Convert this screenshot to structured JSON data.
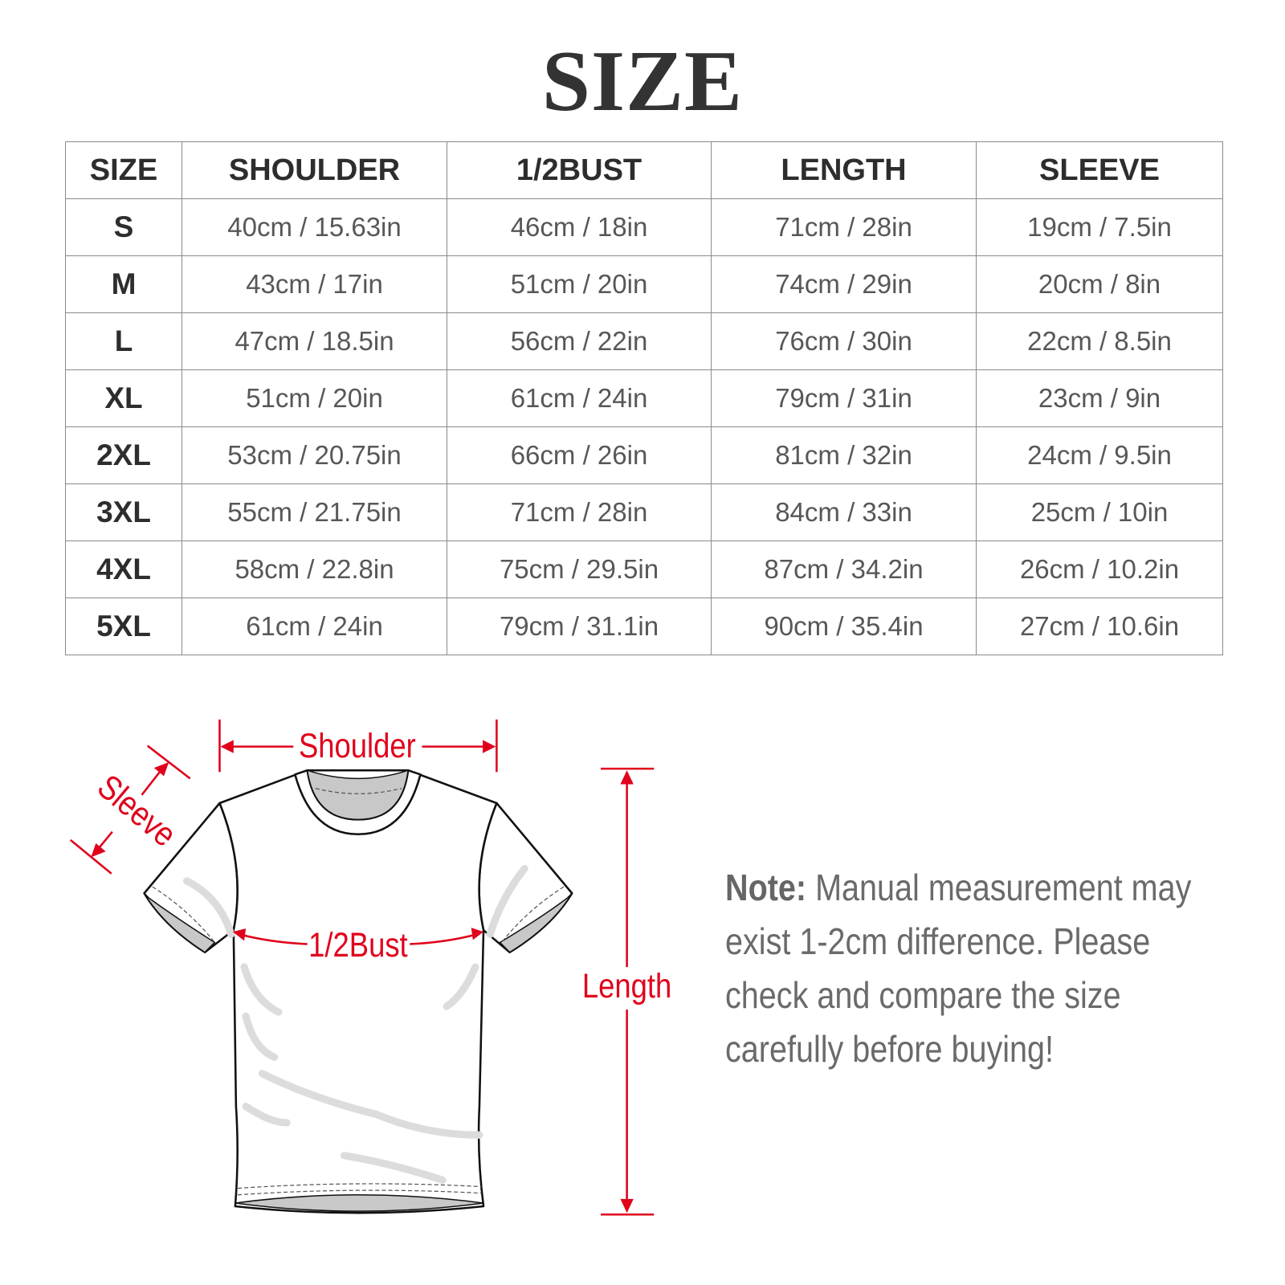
{
  "title": "SIZE",
  "table": {
    "headers": [
      "SIZE",
      "SHOULDER",
      "1/2BUST",
      "LENGTH",
      "SLEEVE"
    ],
    "rows": [
      [
        "S",
        "40cm / 15.63in",
        "46cm / 18in",
        "71cm / 28in",
        "19cm / 7.5in"
      ],
      [
        "M",
        "43cm / 17in",
        "51cm / 20in",
        "74cm / 29in",
        "20cm / 8in"
      ],
      [
        "L",
        "47cm / 18.5in",
        "56cm / 22in",
        "76cm / 30in",
        "22cm / 8.5in"
      ],
      [
        "XL",
        "51cm / 20in",
        "61cm / 24in",
        "79cm / 31in",
        "23cm / 9in"
      ],
      [
        "2XL",
        "53cm / 20.75in",
        "66cm / 26in",
        "81cm / 32in",
        "24cm / 9.5in"
      ],
      [
        "3XL",
        "55cm / 21.75in",
        "71cm / 28in",
        "84cm / 33in",
        "25cm / 10in"
      ],
      [
        "4XL",
        "58cm / 22.8in",
        "75cm / 29.5in",
        "87cm / 34.2in",
        "26cm / 10.2in"
      ],
      [
        "5XL",
        "61cm / 24in",
        "79cm / 31.1in",
        "90cm / 35.4in",
        "27cm / 10.6in"
      ]
    ]
  },
  "diagram": {
    "shoulder": "Shoulder",
    "sleeve": "Sleeve",
    "bust": "1/2Bust",
    "length": "Length",
    "accent_color": "#e0001b"
  },
  "note": {
    "label": "Note:",
    "lines": [
      "Manual measurement may",
      "exist 1-2cm difference. Please",
      "check and compare the size",
      "carefully before buying!"
    ]
  }
}
